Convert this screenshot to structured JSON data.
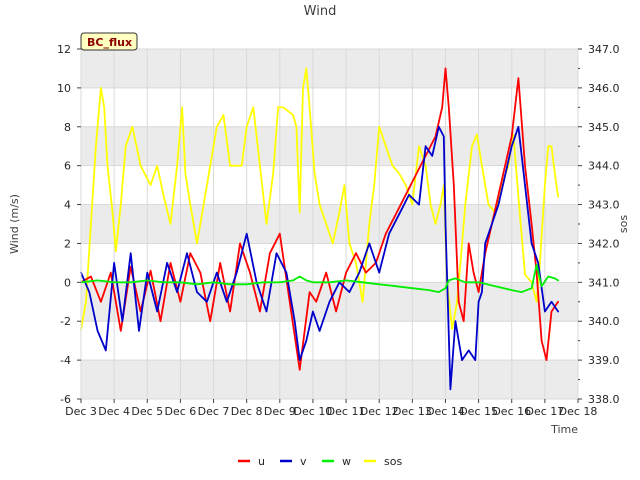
{
  "chart_data": {
    "type": "line",
    "title": "Wind",
    "xlabel": "Time",
    "ylabel": "Wind (m/s)",
    "y2label": "sos",
    "badge": "BC_flux",
    "xlim": [
      3,
      18
    ],
    "ylim": [
      -6,
      12
    ],
    "y2lim": [
      338.0,
      347.0
    ],
    "x_ticks": [
      3,
      4,
      5,
      6,
      7,
      8,
      9,
      10,
      11,
      12,
      13,
      14,
      15,
      16,
      17,
      18
    ],
    "x_tick_labels": [
      "Dec 3",
      "Dec 4",
      "Dec 5",
      "Dec 6",
      "Dec 7",
      "Dec 8",
      "Dec 9",
      "Dec 10",
      "Dec 11",
      "Dec 12",
      "Dec 13",
      "Dec 14",
      "Dec 15",
      "Dec 16",
      "Dec 17",
      "Dec 18"
    ],
    "y_ticks": [
      -6,
      -4,
      -2,
      0,
      2,
      4,
      6,
      8,
      10,
      12
    ],
    "y_tick_labels": [
      "-6",
      "-4",
      "-2",
      "0",
      "2",
      "4",
      "6",
      "8",
      "10",
      "12"
    ],
    "y2_ticks": [
      338.0,
      339.0,
      340.0,
      341.0,
      342.0,
      343.0,
      344.0,
      345.0,
      346.0,
      347.0
    ],
    "y2_tick_labels": [
      "338.0",
      "339.0",
      "340.0",
      "341.0",
      "342.0",
      "343.0",
      "344.0",
      "345.0",
      "346.0",
      "347.0"
    ],
    "legend_position": "bottom-center",
    "colors": {
      "u": "#ff0000",
      "v": "#0000cc",
      "w": "#00ee00",
      "sos": "#ffff00",
      "band": "#ebebeb",
      "grid": "#d9d9d9"
    },
    "series": [
      {
        "name": "u",
        "axis": "left",
        "x": [
          3.0,
          3.3,
          3.6,
          3.9,
          4.2,
          4.5,
          4.8,
          5.1,
          5.4,
          5.7,
          6.0,
          6.3,
          6.6,
          6.9,
          7.2,
          7.5,
          7.8,
          8.1,
          8.4,
          8.7,
          9.0,
          9.3,
          9.6,
          9.9,
          10.1,
          10.4,
          10.7,
          11.0,
          11.3,
          11.6,
          11.9,
          12.2,
          12.5,
          12.8,
          13.1,
          13.4,
          13.7,
          13.9,
          14.0,
          14.1,
          14.25,
          14.4,
          14.55,
          14.7,
          14.85,
          15.0,
          15.2,
          15.4,
          15.6,
          15.8,
          16.0,
          16.2,
          16.4,
          16.6,
          16.75,
          16.9,
          17.05,
          17.2,
          17.4
        ],
        "values": [
          0.0,
          0.3,
          -1.0,
          0.5,
          -2.5,
          0.8,
          -1.5,
          0.6,
          -2.0,
          1.0,
          -1.0,
          1.5,
          0.5,
          -2.0,
          1.0,
          -1.5,
          2.0,
          0.5,
          -1.5,
          1.5,
          2.5,
          -1.0,
          -4.5,
          -0.5,
          -1.0,
          0.5,
          -1.5,
          0.5,
          1.5,
          0.5,
          1.0,
          2.5,
          3.5,
          4.5,
          5.5,
          6.5,
          7.5,
          9.0,
          11.0,
          9.0,
          5.0,
          -1.0,
          -2.0,
          2.0,
          0.5,
          -0.5,
          1.5,
          3.0,
          4.5,
          6.0,
          7.5,
          10.5,
          6.0,
          3.0,
          0.5,
          -3.0,
          -4.0,
          -1.5,
          -1.0
        ]
      },
      {
        "name": "v",
        "axis": "left",
        "x": [
          3.0,
          3.25,
          3.5,
          3.75,
          4.0,
          4.25,
          4.5,
          4.75,
          5.0,
          5.3,
          5.6,
          5.9,
          6.2,
          6.5,
          6.8,
          7.1,
          7.4,
          7.7,
          8.0,
          8.3,
          8.6,
          8.9,
          9.2,
          9.45,
          9.6,
          9.8,
          10.0,
          10.2,
          10.5,
          10.8,
          11.1,
          11.4,
          11.7,
          12.0,
          12.3,
          12.6,
          12.9,
          13.2,
          13.4,
          13.6,
          13.8,
          13.95,
          14.0,
          14.15,
          14.3,
          14.5,
          14.7,
          14.9,
          15.0,
          15.1,
          15.2,
          15.4,
          15.6,
          15.8,
          16.0,
          16.2,
          16.4,
          16.6,
          16.8,
          17.0,
          17.2,
          17.4
        ],
        "values": [
          0.5,
          -0.5,
          -2.5,
          -3.5,
          1.0,
          -2.0,
          1.5,
          -2.5,
          0.5,
          -1.5,
          1.0,
          -0.5,
          1.5,
          -0.5,
          -1.0,
          0.5,
          -1.0,
          0.5,
          2.5,
          0.0,
          -1.5,
          1.5,
          0.5,
          -2.0,
          -4.0,
          -3.0,
          -1.5,
          -2.5,
          -1.0,
          0.0,
          -0.5,
          0.5,
          2.0,
          0.5,
          2.5,
          3.5,
          4.5,
          4.0,
          7.0,
          6.5,
          8.0,
          7.5,
          3.0,
          -5.5,
          -2.0,
          -4.0,
          -3.5,
          -4.0,
          -1.0,
          -0.5,
          2.0,
          3.0,
          4.0,
          5.5,
          7.0,
          8.0,
          5.0,
          2.0,
          1.0,
          -1.5,
          -1.0,
          -1.5
        ]
      },
      {
        "name": "w",
        "axis": "left",
        "x": [
          3.0,
          3.5,
          4.0,
          4.5,
          5.0,
          5.5,
          6.0,
          6.5,
          7.0,
          7.5,
          8.0,
          8.5,
          9.0,
          9.4,
          9.6,
          9.8,
          10.0,
          10.5,
          11.0,
          11.5,
          12.0,
          12.5,
          13.0,
          13.5,
          13.8,
          14.0,
          14.1,
          14.3,
          14.6,
          15.0,
          15.5,
          16.0,
          16.3,
          16.6,
          16.75,
          16.9,
          17.1,
          17.3,
          17.4
        ],
        "values": [
          0.0,
          0.1,
          0.0,
          0.0,
          0.1,
          0.0,
          0.0,
          -0.1,
          0.0,
          -0.1,
          -0.1,
          0.0,
          0.0,
          0.1,
          0.3,
          0.1,
          0.0,
          0.0,
          0.1,
          0.0,
          -0.1,
          -0.2,
          -0.3,
          -0.4,
          -0.5,
          -0.3,
          0.1,
          0.2,
          0.0,
          0.0,
          -0.2,
          -0.4,
          -0.5,
          -0.3,
          0.9,
          -0.2,
          0.3,
          0.2,
          0.1
        ]
      },
      {
        "name": "sos",
        "axis": "right",
        "x": [
          3.0,
          3.15,
          3.3,
          3.45,
          3.6,
          3.7,
          3.8,
          3.95,
          4.05,
          4.2,
          4.35,
          4.55,
          4.8,
          5.1,
          5.3,
          5.5,
          5.7,
          5.9,
          6.05,
          6.15,
          6.3,
          6.5,
          6.7,
          6.9,
          7.1,
          7.3,
          7.5,
          7.7,
          7.85,
          8.0,
          8.2,
          8.4,
          8.6,
          8.8,
          8.95,
          9.1,
          9.25,
          9.4,
          9.5,
          9.6,
          9.7,
          9.8,
          9.9,
          10.05,
          10.2,
          10.4,
          10.6,
          10.8,
          10.95,
          11.1,
          11.3,
          11.5,
          11.7,
          11.85,
          12.0,
          12.2,
          12.4,
          12.6,
          12.8,
          13.0,
          13.2,
          13.4,
          13.55,
          13.7,
          13.85,
          13.95,
          14.05,
          14.2,
          14.35,
          14.45,
          14.6,
          14.8,
          14.95,
          15.1,
          15.3,
          15.5,
          15.7,
          15.9,
          16.05,
          16.2,
          16.4,
          16.6,
          16.75,
          16.85,
          17.0,
          17.1,
          17.2,
          17.3,
          17.4
        ],
        "values": [
          339.8,
          340.5,
          342.5,
          344.5,
          346.0,
          345.5,
          344.0,
          342.8,
          341.8,
          343.0,
          344.5,
          345.0,
          344.0,
          343.5,
          344.0,
          343.2,
          342.5,
          344.0,
          345.5,
          343.8,
          343.0,
          342.0,
          343.0,
          344.0,
          345.0,
          345.3,
          344.0,
          344.0,
          344.0,
          345.0,
          345.5,
          344.0,
          342.5,
          343.8,
          345.5,
          345.5,
          345.4,
          345.3,
          345.0,
          342.8,
          346.0,
          346.5,
          345.5,
          343.8,
          343.0,
          342.5,
          342.0,
          342.8,
          343.5,
          342.0,
          341.5,
          340.5,
          342.5,
          343.5,
          345.0,
          344.5,
          344.0,
          343.8,
          343.5,
          343.0,
          344.5,
          344.0,
          343.0,
          342.5,
          343.0,
          343.5,
          341.0,
          339.8,
          340.5,
          341.5,
          343.0,
          344.5,
          344.8,
          344.0,
          343.0,
          342.8,
          343.5,
          344.0,
          344.8,
          343.2,
          341.2,
          341.0,
          340.5,
          341.5,
          343.5,
          344.5,
          344.5,
          343.8,
          343.2
        ]
      }
    ]
  }
}
